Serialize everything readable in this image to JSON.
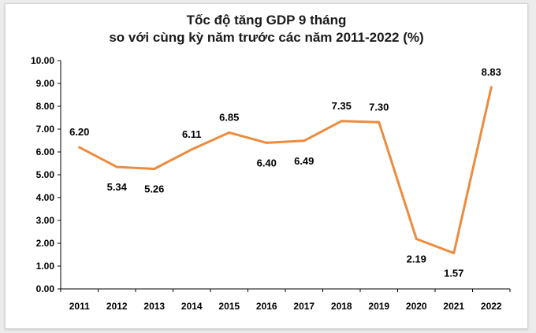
{
  "chart_data": {
    "type": "line",
    "title_line1": "Tốc độ tăng GDP 9 tháng",
    "title_line2": "so với cùng kỳ năm trước các năm 2011-2022 (%)",
    "categories": [
      "2011",
      "2012",
      "2013",
      "2014",
      "2015",
      "2016",
      "2017",
      "2018",
      "2019",
      "2020",
      "2021",
      "2022"
    ],
    "values": [
      6.2,
      5.34,
      5.26,
      6.11,
      6.85,
      6.4,
      6.49,
      7.35,
      7.3,
      2.19,
      1.57,
      8.83
    ],
    "data_labels": [
      "6.20",
      "5.34",
      "5.26",
      "6.11",
      "6.85",
      "6.40",
      "6.49",
      "7.35",
      "7.30",
      "2.19",
      "1.57",
      "8.83"
    ],
    "label_side": [
      "above",
      "below",
      "below",
      "above",
      "above",
      "below",
      "below",
      "above",
      "above",
      "below",
      "below",
      "above"
    ],
    "y_ticks": [
      "0.00",
      "1.00",
      "2.00",
      "3.00",
      "4.00",
      "5.00",
      "6.00",
      "7.00",
      "8.00",
      "9.00",
      "10.00"
    ],
    "ylim": [
      0,
      10
    ],
    "xlabel": "",
    "ylabel": "",
    "grid": false,
    "line_color": "#ed8b3e",
    "axis_color": "#000000"
  }
}
